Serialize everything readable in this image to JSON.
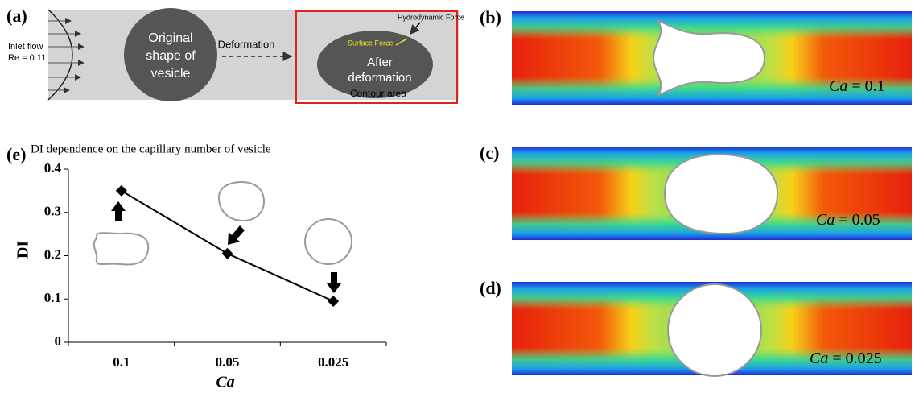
{
  "panel_a": {
    "label": "(a)",
    "inlet": "Inlet flow",
    "re": "Re = 0.11",
    "original": [
      "Original",
      "shape of",
      "vesicle"
    ],
    "deformation": "Deformation",
    "after": [
      "After",
      "deformation"
    ],
    "hydro": "Hydrodynamic Force",
    "surface": "Surface Force",
    "contour": "Contour area"
  },
  "panels_bcd": [
    {
      "label": "(b)",
      "ca": "Ca",
      "ca_value": "= 0.1"
    },
    {
      "label": "(c)",
      "ca": "Ca",
      "ca_value": "= 0.05"
    },
    {
      "label": "(d)",
      "ca": "Ca",
      "ca_value": "= 0.025"
    }
  ],
  "chart_data": {
    "type": "line",
    "label": "(e)",
    "title": "DI dependence on the capillary number of vesicle",
    "x_label": "Ca",
    "y_label": "DI",
    "categories": [
      "0.1",
      "0.05",
      "0.025"
    ],
    "values": [
      0.35,
      0.205,
      0.095
    ],
    "color": "#000000",
    "ylim": [
      0,
      0.4
    ],
    "yticks": [
      0,
      0.1,
      0.2,
      0.3,
      0.4
    ]
  }
}
